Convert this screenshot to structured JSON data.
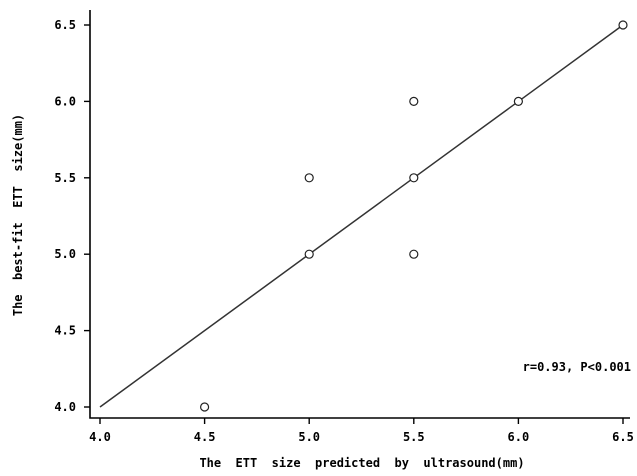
{
  "chart_data": {
    "type": "scatter",
    "xlabel": "The  ETT  size  predicted  by  ultrasound(mm)",
    "ylabel": "The  best-fit  ETT  size(mm)",
    "xlim": [
      4.0,
      6.5
    ],
    "ylim": [
      4.0,
      6.5
    ],
    "xticks": [
      "4.0",
      "4.5",
      "5.0",
      "5.5",
      "6.0",
      "6.5"
    ],
    "yticks": [
      "4.0",
      "4.5",
      "5.0",
      "5.5",
      "6.0",
      "6.5"
    ],
    "grid": false,
    "points": [
      {
        "x": 4.5,
        "y": 4.0
      },
      {
        "x": 5.0,
        "y": 5.0
      },
      {
        "x": 5.0,
        "y": 5.5
      },
      {
        "x": 5.5,
        "y": 5.0
      },
      {
        "x": 5.5,
        "y": 5.5
      },
      {
        "x": 5.5,
        "y": 6.0
      },
      {
        "x": 6.0,
        "y": 6.0
      },
      {
        "x": 6.5,
        "y": 6.5
      }
    ],
    "fit_line": {
      "x": [
        4.0,
        6.5
      ],
      "y": [
        4.0,
        6.5
      ]
    },
    "annotation": "r=0.93,  P<0.001"
  }
}
